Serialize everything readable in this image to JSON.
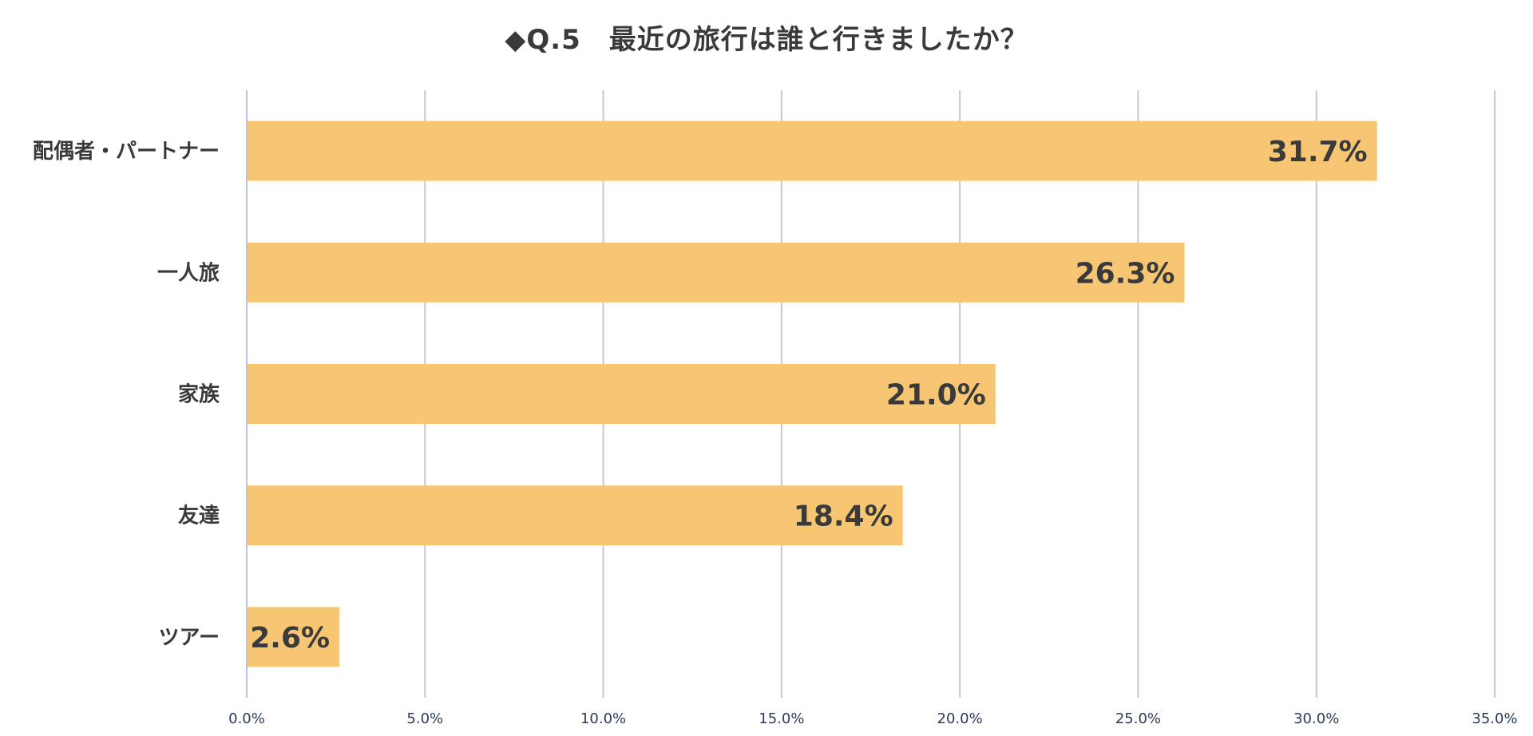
{
  "chart_data": {
    "type": "bar",
    "orientation": "horizontal",
    "title": "◆Q.5　最近の旅行は誰と行きましたか？",
    "categories": [
      "配偶者・パートナー",
      "一人旅",
      "家族",
      "友達",
      "ツアー"
    ],
    "values": [
      31.7,
      26.3,
      21.0,
      18.4,
      2.6
    ],
    "data_labels": [
      "31.7%",
      "26.3%",
      "21.0%",
      "18.4%",
      "2.6%"
    ],
    "xlim": [
      0,
      35
    ],
    "x_ticks": [
      0,
      5,
      10,
      15,
      20,
      25,
      30,
      35
    ],
    "x_tick_labels": [
      "0.0%",
      "5.0%",
      "10.0%",
      "15.0%",
      "20.0%",
      "25.0%",
      "30.0%",
      "35.0%"
    ],
    "grid": true,
    "legend": "none",
    "colors": {
      "bar": "#F6C672",
      "grid": "#C8C8C8",
      "axis": "#B8C4DC",
      "text": "#3A3A3A",
      "tick_text": "#2C3B5A"
    }
  }
}
